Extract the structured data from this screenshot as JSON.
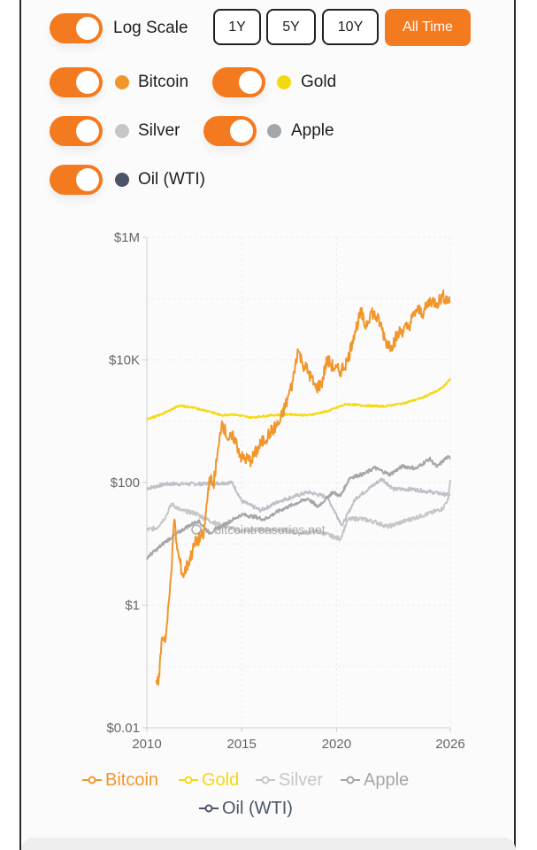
{
  "controls": {
    "log_scale_label": "Log Scale",
    "ranges": [
      {
        "label": "1Y",
        "active": false
      },
      {
        "label": "5Y",
        "active": false
      },
      {
        "label": "10Y",
        "active": false
      },
      {
        "label": "All Time",
        "active": true
      }
    ]
  },
  "assets": [
    {
      "name": "Bitcoin",
      "color": "#f0962a"
    },
    {
      "name": "Gold",
      "color": "#f5d90f"
    },
    {
      "name": "Silver",
      "color": "#c6c6c8"
    },
    {
      "name": "Apple",
      "color": "#a3a7aa"
    },
    {
      "name": "Oil (WTI)",
      "color": "#4a5568"
    }
  ],
  "watermark": "bitcointreasuries.net",
  "chart_data": {
    "type": "line",
    "scale": "log",
    "ylim": [
      0.01,
      1000000
    ],
    "xlim": [
      2010,
      2026
    ],
    "y_ticks": [
      {
        "value": 1000000,
        "label": "$1M"
      },
      {
        "value": 10000,
        "label": "$10K"
      },
      {
        "value": 100,
        "label": "$100"
      },
      {
        "value": 1,
        "label": "$1"
      },
      {
        "value": 0.01,
        "label": "$0.01"
      }
    ],
    "x_ticks": [
      {
        "value": 2010,
        "label": "2010"
      },
      {
        "value": 2015,
        "label": "2015"
      },
      {
        "value": 2020,
        "label": "2020"
      },
      {
        "value": 2026,
        "label": "2026"
      }
    ],
    "series": [
      {
        "name": "Bitcoin",
        "color": "#f0962a",
        "x": [
          2010.5,
          2010.6,
          2010.8,
          2011.0,
          2011.2,
          2011.45,
          2011.6,
          2011.9,
          2012.2,
          2012.6,
          2013.0,
          2013.3,
          2013.5,
          2013.8,
          2013.95,
          2014.3,
          2014.6,
          2015.0,
          2015.5,
          2016.0,
          2016.5,
          2017.0,
          2017.4,
          2017.7,
          2017.95,
          2018.2,
          2018.5,
          2018.9,
          2019.2,
          2019.5,
          2019.9,
          2020.2,
          2020.6,
          2020.9,
          2021.3,
          2021.5,
          2021.85,
          2022.3,
          2022.6,
          2022.9,
          2023.3,
          2023.8,
          2024.2,
          2024.6,
          2024.95,
          2025.3,
          2025.6,
          2026.0
        ],
        "values": [
          0.06,
          0.05,
          0.3,
          0.3,
          1.5,
          25,
          8,
          3,
          5,
          11,
          14,
          120,
          90,
          400,
          1000,
          500,
          550,
          250,
          230,
          420,
          650,
          950,
          2200,
          4500,
          15000,
          9000,
          6500,
          3500,
          4000,
          10000,
          7200,
          6500,
          10000,
          25000,
          60000,
          35000,
          62000,
          40000,
          20000,
          17000,
          28000,
          35000,
          65000,
          60000,
          95000,
          85000,
          110000,
          90000
        ]
      },
      {
        "name": "Gold",
        "color": "#f5d90f",
        "x": [
          2010,
          2010.5,
          2011.0,
          2011.7,
          2012.5,
          2013.3,
          2013.9,
          2014.5,
          2015.5,
          2016.5,
          2017.5,
          2018.5,
          2019.5,
          2020.5,
          2021.5,
          2022.5,
          2023.5,
          2024.5,
          2025.3,
          2025.7,
          2026.0
        ],
        "values": [
          1100,
          1200,
          1400,
          1800,
          1650,
          1450,
          1250,
          1300,
          1150,
          1250,
          1300,
          1250,
          1450,
          1900,
          1800,
          1750,
          1950,
          2400,
          3100,
          3800,
          5000
        ]
      },
      {
        "name": "Silver",
        "color": "#c6c6c8",
        "x": [
          2010,
          2010.5,
          2011.0,
          2011.3,
          2011.8,
          2012.5,
          2013.3,
          2013.9,
          2015.0,
          2016.0,
          2017.0,
          2018.0,
          2019.0,
          2020.2,
          2020.6,
          2021.2,
          2022.0,
          2022.7,
          2023.5,
          2024.5,
          2025.0,
          2025.6,
          2025.9,
          2026.0
        ],
        "values": [
          17,
          18,
          28,
          45,
          35,
          32,
          24,
          20,
          16,
          17,
          17,
          15,
          16,
          12,
          25,
          26,
          23,
          19,
          23,
          29,
          32,
          38,
          55,
          110
        ]
      },
      {
        "name": "Apple",
        "color": "#a3a7aa",
        "x": [
          2010,
          2010.5,
          2011.0,
          2012.0,
          2012.7,
          2013.3,
          2014.0,
          2015.0,
          2015.6,
          2016.2,
          2017.0,
          2017.8,
          2018.5,
          2019.0,
          2019.8,
          2020.2,
          2020.7,
          2021.5,
          2022.0,
          2022.8,
          2023.5,
          2024.2,
          2024.9,
          2025.3,
          2025.8,
          2026.0
        ],
        "values": [
          6,
          8,
          11,
          18,
          24,
          15,
          20,
          30,
          28,
          25,
          35,
          45,
          55,
          40,
          70,
          60,
          120,
          140,
          175,
          135,
          185,
          170,
          245,
          180,
          255,
          255
        ]
      },
      {
        "name": "Oil (WTI)",
        "color": "#4a5568",
        "x": [
          2010,
          2011.0,
          2012.0,
          2013.0,
          2014.5,
          2015.0,
          2016.0,
          2017.0,
          2018.5,
          2019.5,
          2020.3,
          2021.0,
          2022.4,
          2023.0,
          2024.0,
          2025.0,
          2026.0
        ],
        "values": [
          80,
          95,
          95,
          95,
          100,
          50,
          35,
          50,
          70,
          58,
          20,
          55,
          115,
          78,
          78,
          70,
          62
        ],
        "hidden_behind": true
      }
    ],
    "legend_position": "bottom-center"
  }
}
